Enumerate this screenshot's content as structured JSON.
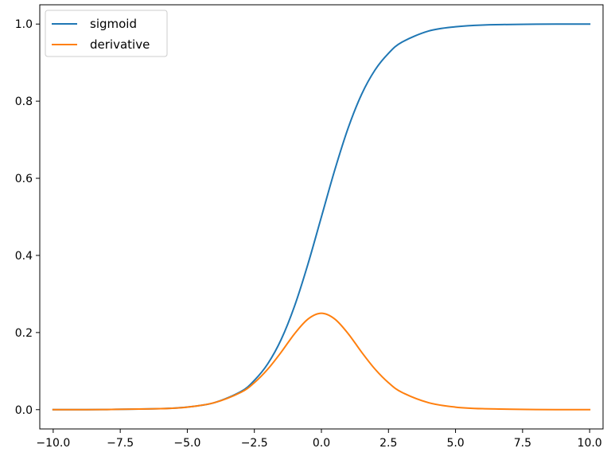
{
  "chart_data": {
    "type": "line",
    "title": "",
    "xlabel": "",
    "ylabel": "",
    "xlim": [
      -10.5,
      10.5
    ],
    "ylim": [
      -0.05,
      1.05
    ],
    "grid": false,
    "legend_position": "top-left",
    "x_ticks": [
      -10.0,
      -7.5,
      -5.0,
      -2.5,
      0.0,
      2.5,
      5.0,
      7.5,
      10.0
    ],
    "x_tick_labels": [
      "−10.0",
      "−7.5",
      "−5.0",
      "−2.5",
      "0.0",
      "2.5",
      "5.0",
      "7.5",
      "10.0"
    ],
    "y_ticks": [
      0.0,
      0.2,
      0.4,
      0.6,
      0.8,
      1.0
    ],
    "y_tick_labels": [
      "0.0",
      "0.2",
      "0.4",
      "0.6",
      "0.8",
      "1.0"
    ],
    "x": [
      -10.0,
      -8.0,
      -6.0,
      -5.0,
      -4.0,
      -3.0,
      -2.5,
      -2.0,
      -1.5,
      -1.0,
      -0.5,
      0.0,
      0.5,
      1.0,
      1.5,
      2.0,
      2.5,
      3.0,
      4.0,
      5.0,
      6.0,
      8.0,
      10.0
    ],
    "series": [
      {
        "name": "sigmoid",
        "color": "#1f77b4",
        "values": [
          0.0,
          0.0004,
          0.0025,
          0.0067,
          0.018,
          0.047,
          0.076,
          0.119,
          0.182,
          0.269,
          0.378,
          0.5,
          0.622,
          0.731,
          0.818,
          0.881,
          0.924,
          0.953,
          0.982,
          0.993,
          0.9975,
          0.9997,
          1.0
        ]
      },
      {
        "name": "derivative",
        "color": "#ff7f0e",
        "values": [
          0.0,
          0.0004,
          0.0025,
          0.0066,
          0.018,
          0.045,
          0.07,
          0.105,
          0.149,
          0.197,
          0.235,
          0.25,
          0.235,
          0.197,
          0.149,
          0.105,
          0.07,
          0.045,
          0.018,
          0.0066,
          0.0025,
          0.0004,
          0.0
        ]
      }
    ]
  }
}
